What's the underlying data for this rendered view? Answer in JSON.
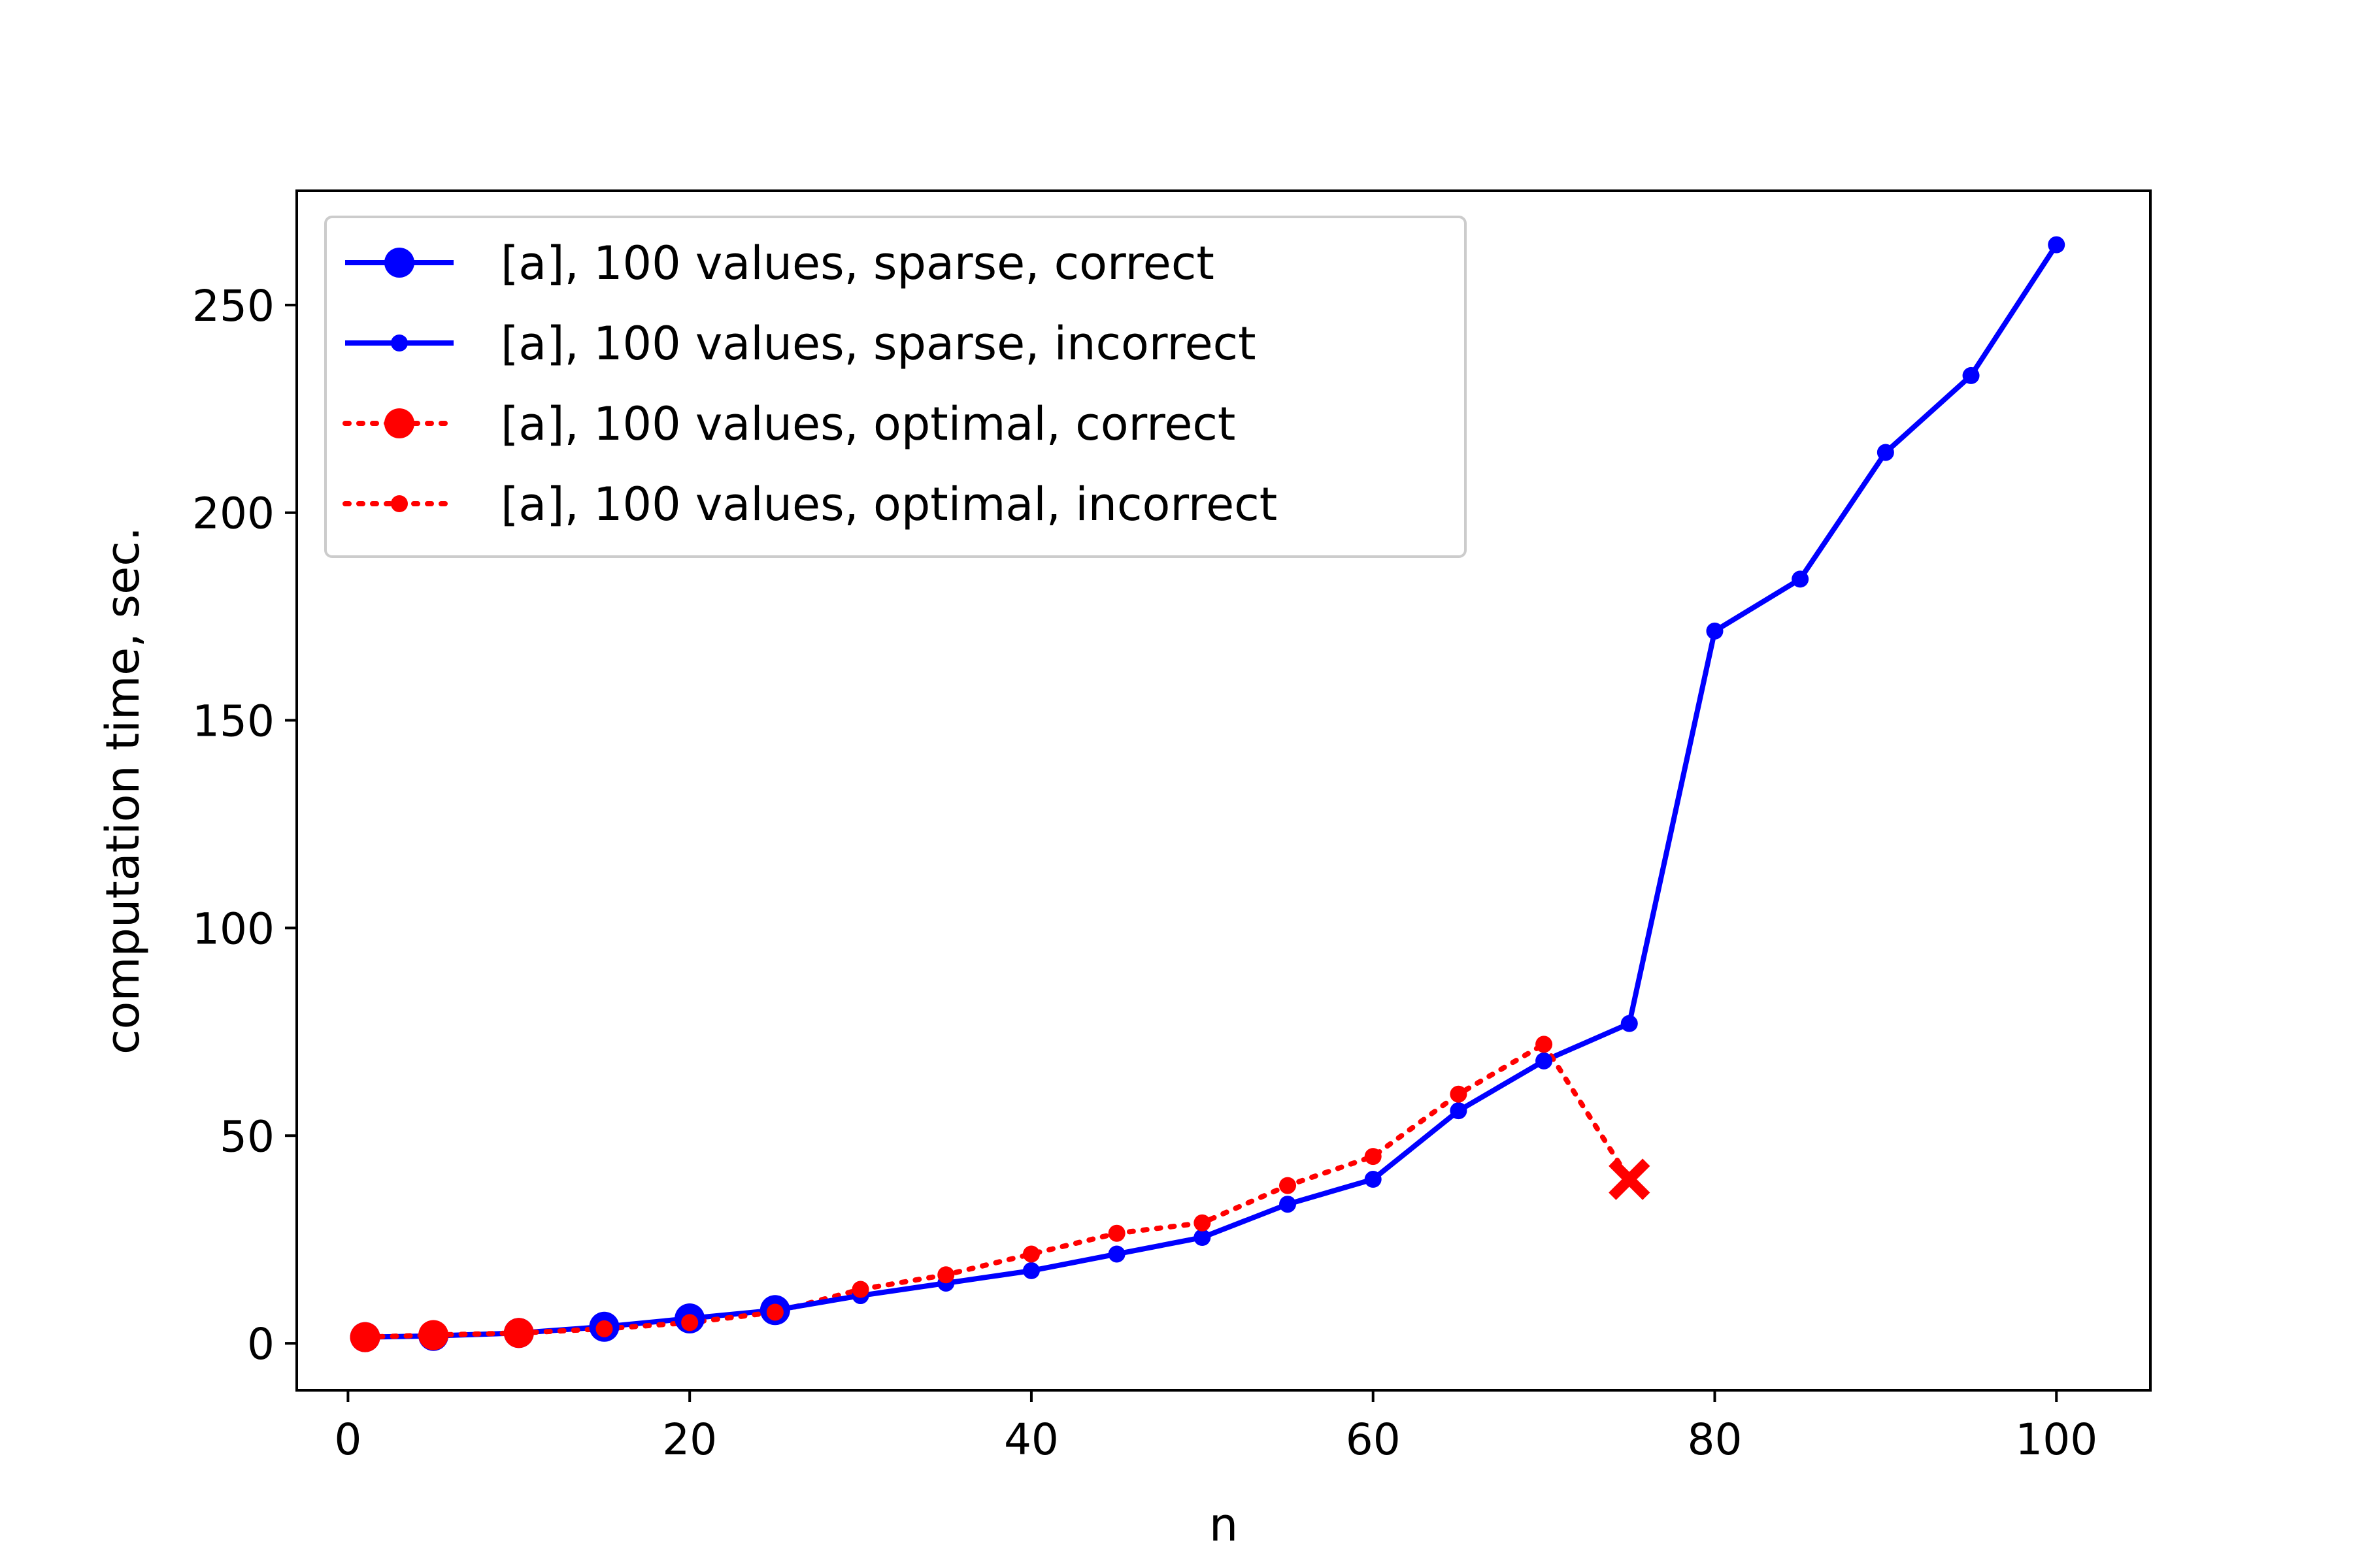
{
  "chart_data": {
    "type": "line",
    "xlabel": "n",
    "ylabel": "computation time, sec.",
    "xlim": [
      -3,
      105.5
    ],
    "ylim": [
      -11.3,
      277.5
    ],
    "xticks": [
      0,
      20,
      40,
      60,
      80,
      100
    ],
    "yticks": [
      0,
      50,
      100,
      150,
      200,
      250
    ],
    "grid": false,
    "legend_position": "top-left",
    "series": [
      {
        "name": "[a], 100 values, sparse, correct",
        "color": "#0000ff",
        "line": "solid",
        "marker": "large-circle",
        "x": [
          1,
          5,
          10,
          15,
          20,
          25
        ],
        "y": [
          1.5,
          1.8,
          2.5,
          4.0,
          6.0,
          8.0
        ]
      },
      {
        "name": "[a], 100 values, sparse, incorrect",
        "color": "#0000ff",
        "line": "solid",
        "marker": "small-circle",
        "x": [
          30,
          35,
          40,
          45,
          50,
          55,
          60,
          65,
          70,
          75,
          80,
          85,
          90,
          95,
          100
        ],
        "y": [
          11.5,
          14.5,
          17.5,
          21.5,
          25.5,
          33.5,
          39.5,
          56.0,
          68.0,
          77.0,
          171.5,
          184.0,
          214.5,
          233.0,
          264.5
        ]
      },
      {
        "name": "[a], 100 values, optimal, correct",
        "color": "#ff0000",
        "line": "dotted",
        "marker": "large-circle",
        "x": [
          1,
          5,
          10
        ],
        "y": [
          1.5,
          2.0,
          2.5
        ]
      },
      {
        "name": "[a], 100 values, optimal, incorrect",
        "color": "#ff0000",
        "line": "dotted",
        "marker": "small-circle",
        "x": [
          15,
          20,
          25,
          30,
          35,
          40,
          45,
          50,
          55,
          60,
          65,
          70
        ],
        "y": [
          3.5,
          5.0,
          7.5,
          13.0,
          16.5,
          21.5,
          26.5,
          29.0,
          38.0,
          45.0,
          60.0,
          72.0
        ]
      }
    ],
    "annotations": [
      {
        "marker": "x-cross",
        "color": "#ff0000",
        "x": 75,
        "y": 39.5
      }
    ]
  }
}
